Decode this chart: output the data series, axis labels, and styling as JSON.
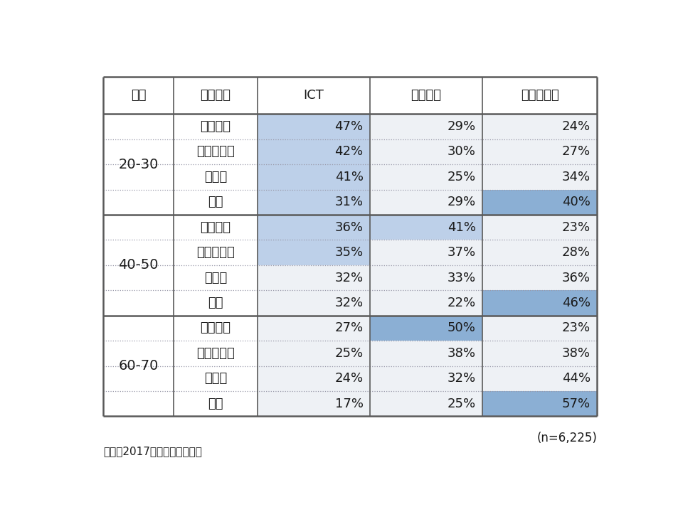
{
  "source": "出所：2017年防災・減災調査",
  "note": "(n=6,225)",
  "headers": [
    "年齢",
    "都市規模",
    "ICT",
    "メディア",
    "公的・人伝"
  ],
  "age_groups": [
    "20-30",
    "40-50",
    "60-70"
  ],
  "city_types": [
    "政令指定",
    "中核・特例",
    "一般市",
    "町村"
  ],
  "data": {
    "20-30": {
      "政令指定": {
        "ICT": "47%",
        "メディア": "29%",
        "公的・人伝": "24%"
      },
      "中核・特例": {
        "ICT": "42%",
        "メディア": "30%",
        "公的・人伝": "27%"
      },
      "一般市": {
        "ICT": "41%",
        "メディア": "25%",
        "公的・人伝": "34%"
      },
      "町村": {
        "ICT": "31%",
        "メディア": "29%",
        "公的・人伝": "40%"
      }
    },
    "40-50": {
      "政令指定": {
        "ICT": "36%",
        "メディア": "41%",
        "公的・人伝": "23%"
      },
      "中核・特例": {
        "ICT": "35%",
        "メディア": "37%",
        "公的・人伝": "28%"
      },
      "一般市": {
        "ICT": "32%",
        "メディア": "33%",
        "公的・人伝": "36%"
      },
      "町村": {
        "ICT": "32%",
        "メディア": "22%",
        "公的・人伝": "46%"
      }
    },
    "60-70": {
      "政令指定": {
        "ICT": "27%",
        "メディア": "50%",
        "公的・人伝": "23%"
      },
      "中核・特例": {
        "ICT": "25%",
        "メディア": "38%",
        "公的・人伝": "38%"
      },
      "一般市": {
        "ICT": "24%",
        "メディア": "32%",
        "公的・人伝": "44%"
      },
      "町村": {
        "ICT": "17%",
        "メディア": "25%",
        "公的・人伝": "57%"
      }
    }
  },
  "cell_colors": {
    "20-30": {
      "政令指定": {
        "ICT": "#bdd0e9",
        "メディア": "#eef1f5",
        "公的・人伝": "#eef1f5"
      },
      "中核・特例": {
        "ICT": "#bdd0e9",
        "メディア": "#eef1f5",
        "公的・人伝": "#eef1f5"
      },
      "一般市": {
        "ICT": "#bdd0e9",
        "メディア": "#eef1f5",
        "公的・人伝": "#eef1f5"
      },
      "町村": {
        "ICT": "#bdd0e9",
        "メディア": "#eef1f5",
        "公的・人伝": "#8bafd4"
      }
    },
    "40-50": {
      "政令指定": {
        "ICT": "#bdd0e9",
        "メディア": "#bdd0e9",
        "公的・人伝": "#eef1f5"
      },
      "中核・特例": {
        "ICT": "#bdd0e9",
        "メディア": "#eef1f5",
        "公的・人伝": "#eef1f5"
      },
      "一般市": {
        "ICT": "#eef1f5",
        "メディア": "#eef1f5",
        "公的・人伝": "#eef1f5"
      },
      "町村": {
        "ICT": "#eef1f5",
        "メディア": "#eef1f5",
        "公的・人伝": "#8bafd4"
      }
    },
    "60-70": {
      "政令指定": {
        "ICT": "#eef1f5",
        "メディア": "#8bafd4",
        "公的・人伝": "#eef1f5"
      },
      "中核・特例": {
        "ICT": "#eef1f5",
        "メディア": "#eef1f5",
        "公的・人伝": "#eef1f5"
      },
      "一般市": {
        "ICT": "#eef1f5",
        "メディア": "#eef1f5",
        "公的・人伝": "#eef1f5"
      },
      "町村": {
        "ICT": "#eef1f5",
        "メディア": "#eef1f5",
        "公的・人伝": "#8bafd4"
      }
    }
  }
}
